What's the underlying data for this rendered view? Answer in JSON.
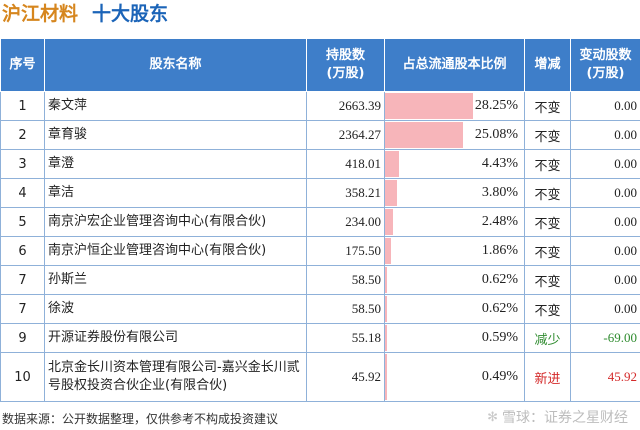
{
  "title": {
    "company": "沪江材料",
    "section": "十大股东"
  },
  "columns": {
    "rank": "序号",
    "name": "股东名称",
    "shares": "持股数\n(万股)",
    "ratio": "占总流通股本比例",
    "change": "增减",
    "delta": "变动股数\n(万股)"
  },
  "rows": [
    {
      "rank": "1",
      "name": "秦文萍",
      "shares": "2663.39",
      "ratio": "28.25%",
      "ratio_value": 28.25,
      "change": "不变",
      "change_type": "same",
      "delta": "0.00"
    },
    {
      "rank": "2",
      "name": "章育骏",
      "shares": "2364.27",
      "ratio": "25.08%",
      "ratio_value": 25.08,
      "change": "不变",
      "change_type": "same",
      "delta": "0.00"
    },
    {
      "rank": "3",
      "name": "章澄",
      "shares": "418.01",
      "ratio": "4.43%",
      "ratio_value": 4.43,
      "change": "不变",
      "change_type": "same",
      "delta": "0.00"
    },
    {
      "rank": "4",
      "name": "章洁",
      "shares": "358.21",
      "ratio": "3.80%",
      "ratio_value": 3.8,
      "change": "不变",
      "change_type": "same",
      "delta": "0.00"
    },
    {
      "rank": "5",
      "name": "南京沪宏企业管理咨询中心(有限合伙)",
      "shares": "234.00",
      "ratio": "2.48%",
      "ratio_value": 2.48,
      "change": "不变",
      "change_type": "same",
      "delta": "0.00"
    },
    {
      "rank": "6",
      "name": "南京沪恒企业管理咨询中心(有限合伙)",
      "shares": "175.50",
      "ratio": "1.86%",
      "ratio_value": 1.86,
      "change": "不变",
      "change_type": "same",
      "delta": "0.00"
    },
    {
      "rank": "7",
      "name": "孙斯兰",
      "shares": "58.50",
      "ratio": "0.62%",
      "ratio_value": 0.62,
      "change": "不变",
      "change_type": "same",
      "delta": "0.00"
    },
    {
      "rank": "7",
      "name": "徐波",
      "shares": "58.50",
      "ratio": "0.62%",
      "ratio_value": 0.62,
      "change": "不变",
      "change_type": "same",
      "delta": "0.00"
    },
    {
      "rank": "9",
      "name": "开源证券股份有限公司",
      "shares": "55.18",
      "ratio": "0.59%",
      "ratio_value": 0.59,
      "change": "减少",
      "change_type": "down",
      "delta": "-69.00"
    },
    {
      "rank": "10",
      "name": "北京金长川资本管理有限公司-嘉兴金长川贰号股权投资合伙企业(有限合伙)",
      "shares": "45.92",
      "ratio": "0.49%",
      "ratio_value": 0.49,
      "change": "新进",
      "change_type": "new",
      "delta": "45.92"
    }
  ],
  "footer": "数据来源：公开数据整理，仅供参考不构成投资建议",
  "brand": {
    "icon": "snowball-icon",
    "text": "雪球：证券之星财经"
  },
  "colors": {
    "header_bg": "#3e7ec9",
    "bar": "#f7b5ba",
    "title_orange": "#d6861e",
    "title_blue": "#1b64b8",
    "down": "#2e8b2e",
    "up": "#d42a2a"
  }
}
